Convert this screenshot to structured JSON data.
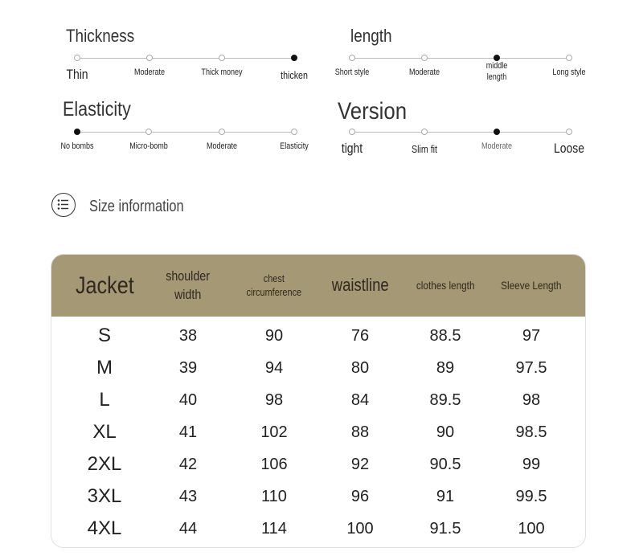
{
  "attributes": [
    {
      "title": "Thickness",
      "options": [
        {
          "label": "Thin",
          "size": "big"
        },
        {
          "label": "Moderate",
          "size": "small"
        },
        {
          "label": "Thick money",
          "size": "small"
        },
        {
          "label": "thicken",
          "size": "mid"
        }
      ],
      "selected": 3
    },
    {
      "title": "length",
      "options": [
        {
          "label": "Short style",
          "size": "small"
        },
        {
          "label": "Moderate",
          "size": "small"
        },
        {
          "label": "middle length",
          "size": "small"
        },
        {
          "label": "Long style",
          "size": "small"
        }
      ],
      "selected": 2
    },
    {
      "title": "Elasticity",
      "options": [
        {
          "label": "No bombs",
          "size": "small"
        },
        {
          "label": "Micro-bomb",
          "size": "small"
        },
        {
          "label": "Moderate",
          "size": "small"
        },
        {
          "label": "Elasticity",
          "size": "small"
        }
      ],
      "selected": 0
    },
    {
      "title": "Version",
      "options": [
        {
          "label": "tight",
          "size": "big"
        },
        {
          "label": "Slim fit",
          "size": "mid"
        },
        {
          "label": "Moderate",
          "size": "small"
        },
        {
          "label": "Loose",
          "size": "big"
        }
      ],
      "selected": 2
    }
  ],
  "size_section": {
    "icon": "list-icon",
    "label": "Size information"
  },
  "size_table": {
    "header_color": "#a59874",
    "columns": [
      "Jacket",
      "shoulder width",
      "chest circumference",
      "waistline",
      "clothes length",
      "Sleeve Length"
    ],
    "rows": [
      [
        "S",
        "38",
        "90",
        "76",
        "88.5",
        "97"
      ],
      [
        "M",
        "39",
        "94",
        "80",
        "89",
        "97.5"
      ],
      [
        "L",
        "40",
        "98",
        "84",
        "89.5",
        "98"
      ],
      [
        "XL",
        "41",
        "102",
        "88",
        "90",
        "98.5"
      ],
      [
        "2XL",
        "42",
        "106",
        "92",
        "90.5",
        "99"
      ],
      [
        "3XL",
        "43",
        "110",
        "96",
        "91",
        "99.5"
      ],
      [
        "4XL",
        "44",
        "114",
        "100",
        "91.5",
        "100"
      ]
    ]
  }
}
